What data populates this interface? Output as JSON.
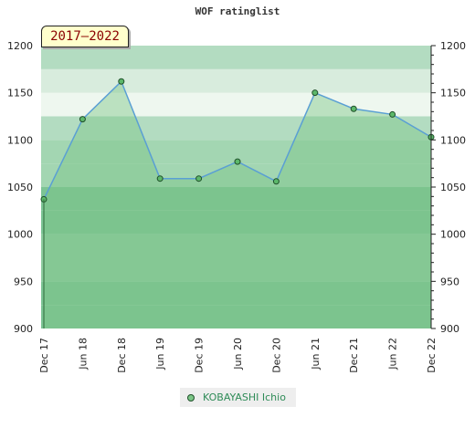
{
  "chart_data": {
    "type": "line",
    "title": "WOF ratinglist",
    "period": "2017–2022",
    "categories": [
      "Dec 17",
      "Jun 18",
      "Dec 18",
      "Jun 19",
      "Dec 19",
      "Jun 20",
      "Dec 20",
      "Jun 21",
      "Dec 21",
      "Jun 22",
      "Dec 22"
    ],
    "series": [
      {
        "name": "KOBAYASHI Ichio",
        "values": [
          1037,
          1122,
          1162,
          1059,
          1059,
          1077,
          1056,
          1150,
          1133,
          1127,
          1103
        ]
      }
    ],
    "ylim": [
      900,
      1200
    ],
    "yticks": [
      900,
      950,
      1000,
      1050,
      1100,
      1150,
      1200
    ],
    "yticks_right": [
      900,
      950,
      1000,
      1050,
      1100,
      1150,
      1200
    ],
    "grid": true,
    "legend_position": "bottom-center",
    "colors": {
      "line": "#5a9fd4",
      "fill": "#7cc687",
      "marker": "#5cb86a",
      "marker_stroke": "#1f4f2a",
      "band_light": "#eef7ef",
      "band_mid": "#b3dcc1",
      "band_dark": "#7cc494"
    }
  }
}
